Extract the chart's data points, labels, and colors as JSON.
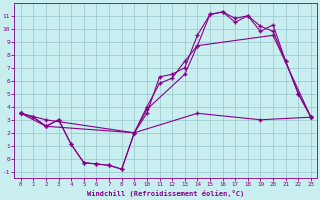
{
  "xlabel": "Windchill (Refroidissement éolien,°C)",
  "bg_color": "#c8eef0",
  "grid_color": "#a0ccd0",
  "line_color": "#880088",
  "xlim": [
    -0.5,
    23.5
  ],
  "ylim": [
    -1.5,
    12.0
  ],
  "yticks": [
    -1,
    0,
    1,
    2,
    3,
    4,
    5,
    6,
    7,
    8,
    9,
    10,
    11
  ],
  "xticks": [
    0,
    1,
    2,
    3,
    4,
    5,
    6,
    7,
    8,
    9,
    10,
    11,
    12,
    13,
    14,
    15,
    16,
    17,
    18,
    19,
    20,
    21,
    22,
    23
  ],
  "line1_x": [
    0,
    1,
    2,
    3,
    4,
    5,
    6,
    7,
    8,
    9,
    10,
    11,
    12,
    13,
    14,
    15,
    16,
    17,
    18,
    19,
    20,
    21,
    22,
    23
  ],
  "line1_y": [
    3.5,
    3.2,
    2.5,
    3.0,
    1.1,
    -0.3,
    -0.4,
    -0.5,
    -0.8,
    2.0,
    3.5,
    6.3,
    6.5,
    7.0,
    9.5,
    11.1,
    11.3,
    10.5,
    11.0,
    10.2,
    9.8,
    7.5,
    5.0,
    3.2
  ],
  "line2_x": [
    0,
    1,
    2,
    3,
    4,
    5,
    6,
    7,
    8,
    9,
    10,
    11,
    12,
    13,
    14,
    15,
    16,
    17,
    18,
    19,
    20,
    21,
    22,
    23
  ],
  "line2_y": [
    3.5,
    3.2,
    2.5,
    3.0,
    1.1,
    -0.3,
    -0.4,
    -0.5,
    -0.8,
    2.0,
    4.0,
    5.8,
    6.2,
    7.5,
    8.7,
    11.1,
    11.3,
    10.8,
    11.0,
    9.8,
    10.3,
    7.5,
    5.0,
    3.2
  ],
  "line3_x": [
    0,
    2,
    9,
    10,
    13,
    14,
    20,
    23
  ],
  "line3_y": [
    3.5,
    3.0,
    2.0,
    3.8,
    6.5,
    8.7,
    9.5,
    3.2
  ],
  "line4_x": [
    0,
    2,
    9,
    14,
    19,
    23
  ],
  "line4_y": [
    3.5,
    2.5,
    2.0,
    3.5,
    3.0,
    3.2
  ]
}
